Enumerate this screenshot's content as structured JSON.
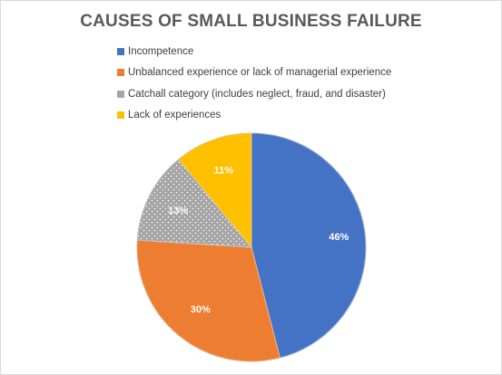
{
  "chart_data": {
    "type": "pie",
    "title": "CAUSES OF SMALL BUSINESS FAILURE",
    "categories": [
      "Incompetence",
      "Unbalanced experience or lack of managerial experience",
      "Catchall category (includes neglect, fraud, and disaster)",
      "Lack of experiences"
    ],
    "values": [
      46,
      30,
      13,
      11
    ],
    "data_labels": [
      "46%",
      "30%",
      "13%",
      "11%"
    ],
    "colors": [
      "#4472c4",
      "#ed7d31",
      "#a5a5a5",
      "#ffc000"
    ],
    "legend_placement": "top",
    "grid": false
  }
}
